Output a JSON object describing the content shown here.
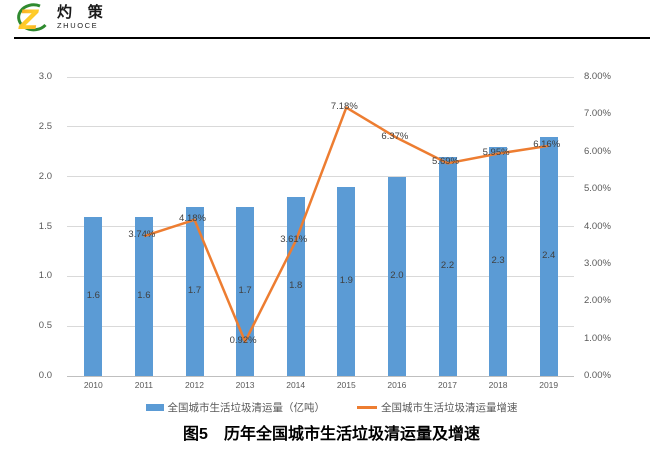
{
  "header": {
    "logo": {
      "name_cn": "灼 策",
      "name_en": "ZHUOCE"
    }
  },
  "chart_data": {
    "type": "combo-bar-line",
    "categories": [
      "2010",
      "2011",
      "2012",
      "2013",
      "2014",
      "2015",
      "2016",
      "2017",
      "2018",
      "2019"
    ],
    "series": [
      {
        "name": "全国城市生活垃圾清运量（亿吨）",
        "type": "bar",
        "axis": "left",
        "color": "#5B9BD5",
        "values": [
          1.6,
          1.6,
          1.7,
          1.7,
          1.8,
          1.9,
          2.0,
          2.2,
          2.3,
          2.4
        ],
        "labels": [
          "1.6",
          "1.6",
          "1.7",
          "1.7",
          "1.8",
          "1.9",
          "2.0",
          "2.2",
          "2.3",
          "2.4"
        ]
      },
      {
        "name": "全国城市生活垃圾清运量增速",
        "type": "line",
        "axis": "right",
        "color": "#ED7D31",
        "values": [
          null,
          3.74,
          4.18,
          0.92,
          3.61,
          7.18,
          6.37,
          5.69,
          5.95,
          6.16
        ],
        "labels": [
          null,
          "3.74%",
          "4.18%",
          "0.92%",
          "3.61%",
          "7.18%",
          "6.37%",
          "5.69%",
          "5.95%",
          "6.16%"
        ]
      }
    ],
    "left_axis": {
      "min": 0,
      "max": 3,
      "step": 0.5,
      "ticks": [
        "3.0",
        "2.5",
        "2.0",
        "1.5",
        "1.0",
        "0.5",
        "0.0"
      ]
    },
    "right_axis": {
      "min": 0,
      "max": 8,
      "step": 1,
      "ticks": [
        "8.00%",
        "7.00%",
        "6.00%",
        "5.00%",
        "4.00%",
        "3.00%",
        "2.00%",
        "1.00%",
        "0.00%"
      ]
    },
    "grid": true,
    "legend_position": "bottom",
    "title": "图5　历年全国城市生活垃圾清运量及增速"
  },
  "colors": {
    "bar": "#5B9BD5",
    "line": "#ED7D31",
    "gridline": "#D9D9D9",
    "axis_line": "#BFBFBF",
    "tick_label": "#595959",
    "data_label": "#404040"
  }
}
